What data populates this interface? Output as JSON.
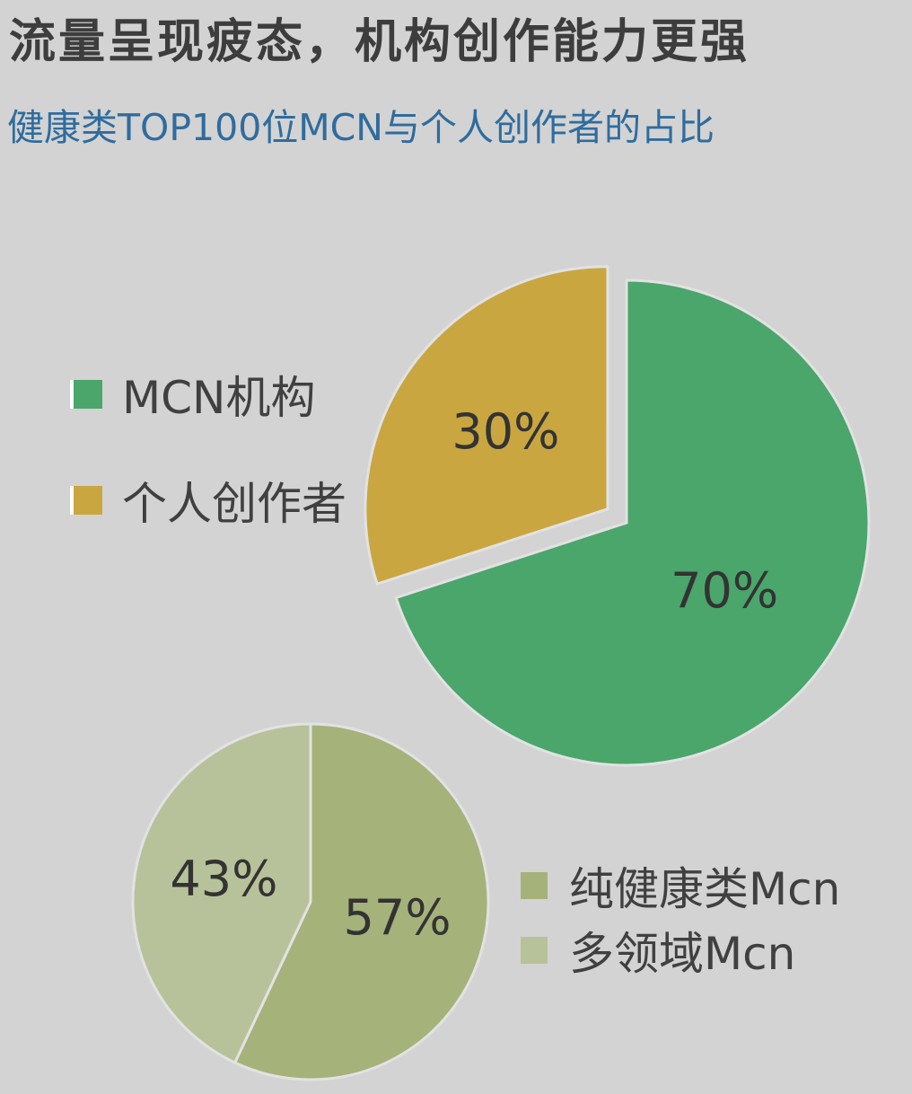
{
  "header": {
    "title": "流量呈现疲态，机构创作能力更强",
    "subtitle": "健康类TOP100位MCN与个人创作者的占比"
  },
  "chart_data": [
    {
      "type": "pie",
      "slices": [
        {
          "label": "MCN机构",
          "value": 70,
          "display": "70%",
          "color": "#4aa66b",
          "exploded": false
        },
        {
          "label": "个人创作者",
          "value": 30,
          "display": "30%",
          "color": "#c9a63f",
          "exploded": true
        }
      ],
      "legend_position": "left"
    },
    {
      "type": "pie",
      "slices": [
        {
          "label": "纯健康类Mcn",
          "value": 57,
          "display": "57%",
          "color": "#a5b27a"
        },
        {
          "label": "多领域Mcn",
          "value": 43,
          "display": "43%",
          "color": "#b8c29a"
        }
      ],
      "legend_position": "right"
    }
  ]
}
